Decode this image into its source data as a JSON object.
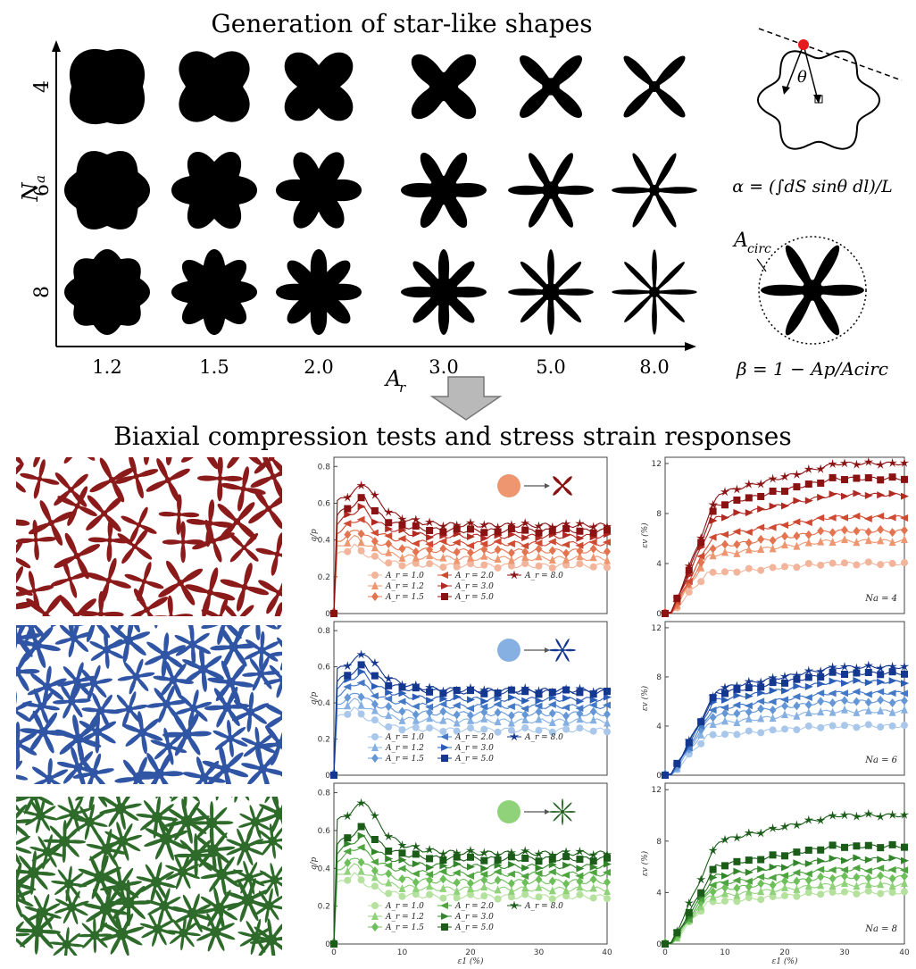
{
  "top": {
    "title": "Generation of star-like shapes",
    "y_axis_label": "N",
    "y_axis_sub": "a",
    "x_axis_label": "A",
    "x_axis_sub": "r",
    "rows": [
      "4",
      "6",
      "8"
    ],
    "cols": [
      "1.2",
      "1.5",
      "2.0",
      "3.0",
      "5.0",
      "8.0"
    ],
    "alpha_formula": "α = (∫dS sinθ dl)/L",
    "theta_symbol": "θ",
    "acirc_label": "A",
    "acirc_sub": "circ",
    "beta_formula": "β = 1 − Ap/Acirc"
  },
  "bottom": {
    "title": "Biaxial compression tests and  stress strain responses"
  },
  "colors": {
    "shape_fill": "#000000",
    "red_dark": "#8b1a1a",
    "blue_dark": "#2f55a4",
    "green_dark": "#2e6b2a",
    "red_scale": [
      "#f2b49a",
      "#ee9670",
      "#e4734f",
      "#d04a32",
      "#b02a22",
      "#8b1212"
    ],
    "blue_scale": [
      "#a9c7ea",
      "#86b0e2",
      "#6597d6",
      "#4479c8",
      "#2a5db5",
      "#14378f"
    ],
    "green_scale": [
      "#b4e19d",
      "#8fd27a",
      "#6cbf59",
      "#4ea43f",
      "#33852b",
      "#1a5c18"
    ]
  },
  "chart_data": [
    {
      "type": "line",
      "panel": "qp-red",
      "ylabel": "q/p",
      "xlabel": "",
      "yticks": [
        "0",
        "0.2",
        "0.4",
        "0.6",
        "0.8"
      ],
      "ylim": [
        0,
        0.85
      ],
      "xlim": [
        0,
        40
      ],
      "xticks": [],
      "legend": [
        "A_r = 1.0",
        "A_r = 1.2",
        "A_r = 1.5",
        "A_r = 2.0",
        "A_r = 3.0",
        "A_r = 5.0",
        "A_r = 8.0"
      ],
      "peak": [
        0.37,
        0.42,
        0.46,
        0.52,
        0.58,
        0.63,
        0.71
      ],
      "residual": [
        0.26,
        0.3,
        0.34,
        0.38,
        0.42,
        0.45,
        0.48
      ]
    },
    {
      "type": "line",
      "panel": "ev-red",
      "ylabel": "εv (%)",
      "xlabel": "",
      "yticks": [
        "0",
        "4",
        "8",
        "12"
      ],
      "ylim": [
        0,
        12.5
      ],
      "xlim": [
        0,
        40
      ],
      "xticks": [],
      "annotation": "Na = 4",
      "plateau": [
        4.0,
        5.8,
        6.6,
        7.7,
        9.5,
        10.8,
        12.0
      ]
    },
    {
      "type": "line",
      "panel": "qp-blue",
      "ylabel": "q/p",
      "xlabel": "",
      "yticks": [
        "0",
        "0.2",
        "0.4",
        "0.6",
        "0.8"
      ],
      "ylim": [
        0,
        0.85
      ],
      "xlim": [
        0,
        40
      ],
      "xticks": [],
      "legend": [
        "A_r = 1.0",
        "A_r = 1.2",
        "A_r = 1.5",
        "A_r = 2.0",
        "A_r = 3.0",
        "A_r = 5.0",
        "A_r = 8.0"
      ],
      "peak": [
        0.37,
        0.42,
        0.46,
        0.52,
        0.57,
        0.61,
        0.68
      ],
      "residual": [
        0.25,
        0.3,
        0.34,
        0.38,
        0.42,
        0.46,
        0.47
      ]
    },
    {
      "type": "line",
      "panel": "ev-blue",
      "ylabel": "εv (%)",
      "xlabel": "",
      "yticks": [
        "0",
        "4",
        "8",
        "12"
      ],
      "ylim": [
        0,
        12.5
      ],
      "xlim": [
        0,
        40
      ],
      "xticks": [],
      "annotation": "Na = 6",
      "plateau": [
        4.0,
        5.2,
        6.0,
        6.7,
        7.6,
        8.3,
        8.8
      ]
    },
    {
      "type": "line",
      "panel": "qp-green",
      "ylabel": "q/p",
      "xlabel": "ε1 (%)",
      "yticks": [
        "0",
        "0.2",
        "0.4",
        "0.6",
        "0.8"
      ],
      "ylim": [
        0,
        0.85
      ],
      "xlim": [
        0,
        40
      ],
      "xticks": [
        "0",
        "10",
        "20",
        "30",
        "40"
      ],
      "legend": [
        "A_r = 1.0",
        "A_r = 1.2",
        "A_r = 1.5",
        "A_r = 2.0",
        "A_r = 3.0",
        "A_r = 5.0",
        "A_r = 8.0"
      ],
      "peak": [
        0.37,
        0.42,
        0.46,
        0.52,
        0.57,
        0.62,
        0.76
      ],
      "residual": [
        0.25,
        0.29,
        0.33,
        0.37,
        0.41,
        0.45,
        0.48
      ]
    },
    {
      "type": "line",
      "panel": "ev-green",
      "ylabel": "εv (%)",
      "xlabel": "ε1 (%)",
      "yticks": [
        "0",
        "4",
        "8",
        "12"
      ],
      "ylim": [
        0,
        12.5
      ],
      "xlim": [
        0,
        40
      ],
      "xticks": [
        "0",
        "10",
        "20",
        "30",
        "40"
      ],
      "annotation": "Na = 8",
      "plateau": [
        4.0,
        4.6,
        5.2,
        5.8,
        6.6,
        7.6,
        10.0
      ]
    }
  ]
}
